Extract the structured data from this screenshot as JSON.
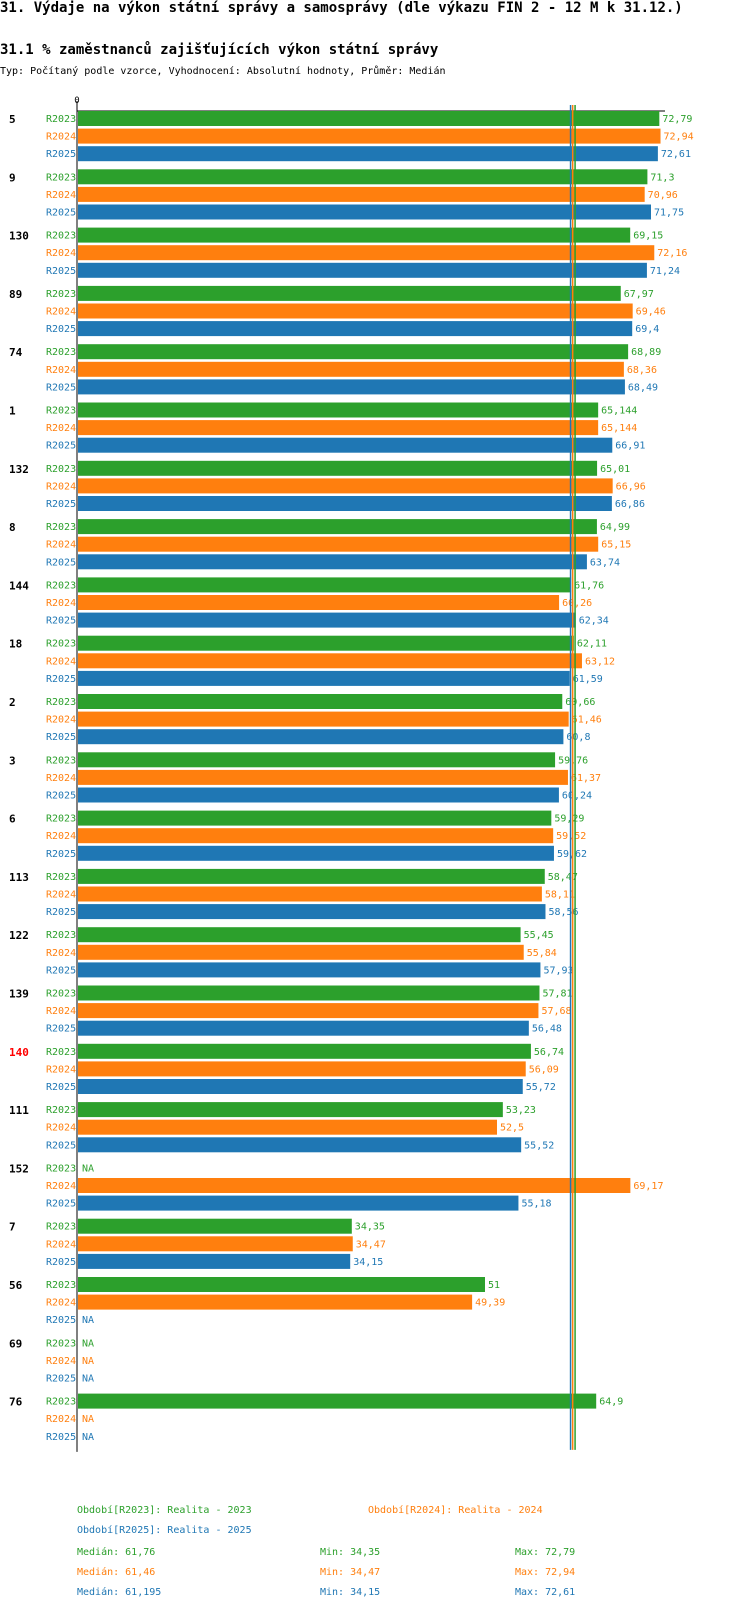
{
  "page": {
    "title": "31. Výdaje na výkon státní správy a samosprávy (dle výkazu FIN 2 - 12 M k 31.12.)",
    "subtitle": "31.1 % zaměstnanců zajišťujících výkon státní správy",
    "meta": "Typ: Počítaný podle vzorce, Vyhodnocení: Absolutní hodnoty, Průměr: Medián"
  },
  "colors": {
    "R2023": "#2ca02c",
    "R2024": "#ff7f0e",
    "R2025": "#1f77b4",
    "highlight": "#ff0000"
  },
  "chart_data": {
    "type": "bar",
    "orientation": "horizontal",
    "axis_zero_label": "0",
    "xlim": [
      0,
      73.5
    ],
    "series_names": [
      "R2023",
      "R2024",
      "R2025"
    ],
    "groups": [
      {
        "id": "5",
        "highlight": false,
        "values": [
          72.79,
          72.94,
          72.61
        ],
        "labels": [
          "72,79",
          "72,94",
          "72,61"
        ]
      },
      {
        "id": "9",
        "highlight": false,
        "values": [
          71.3,
          70.96,
          71.75
        ],
        "labels": [
          "71,3",
          "70,96",
          "71,75"
        ]
      },
      {
        "id": "130",
        "highlight": false,
        "values": [
          69.15,
          72.16,
          71.24
        ],
        "labels": [
          "69,15",
          "72,16",
          "71,24"
        ]
      },
      {
        "id": "89",
        "highlight": false,
        "values": [
          67.97,
          69.46,
          69.4
        ],
        "labels": [
          "67,97",
          "69,46",
          "69,4"
        ]
      },
      {
        "id": "74",
        "highlight": false,
        "values": [
          68.89,
          68.36,
          68.49
        ],
        "labels": [
          "68,89",
          "68,36",
          "68,49"
        ]
      },
      {
        "id": "1",
        "highlight": false,
        "values": [
          65.144,
          65.144,
          66.91
        ],
        "labels": [
          "65,144",
          "65,144",
          "66,91"
        ]
      },
      {
        "id": "132",
        "highlight": false,
        "values": [
          65.01,
          66.96,
          66.86
        ],
        "labels": [
          "65,01",
          "66,96",
          "66,86"
        ]
      },
      {
        "id": "8",
        "highlight": false,
        "values": [
          64.99,
          65.15,
          63.74
        ],
        "labels": [
          "64,99",
          "65,15",
          "63,74"
        ]
      },
      {
        "id": "144",
        "highlight": false,
        "values": [
          61.76,
          60.26,
          62.34
        ],
        "labels": [
          "61,76",
          "60,26",
          "62,34"
        ]
      },
      {
        "id": "18",
        "highlight": false,
        "values": [
          62.11,
          63.12,
          61.59
        ],
        "labels": [
          "62,11",
          "63,12",
          "61,59"
        ]
      },
      {
        "id": "2",
        "highlight": false,
        "values": [
          60.66,
          61.46,
          60.8
        ],
        "labels": [
          "60,66",
          "61,46",
          "60,8"
        ]
      },
      {
        "id": "3",
        "highlight": false,
        "values": [
          59.76,
          61.37,
          60.24
        ],
        "labels": [
          "59,76",
          "61,37",
          "60,24"
        ]
      },
      {
        "id": "6",
        "highlight": false,
        "values": [
          59.29,
          59.52,
          59.62
        ],
        "labels": [
          "59,29",
          "59,52",
          "59,62"
        ]
      },
      {
        "id": "113",
        "highlight": false,
        "values": [
          58.47,
          58.11,
          58.56
        ],
        "labels": [
          "58,47",
          "58,11",
          "58,56"
        ]
      },
      {
        "id": "122",
        "highlight": false,
        "values": [
          55.45,
          55.84,
          57.93
        ],
        "labels": [
          "55,45",
          "55,84",
          "57,93"
        ]
      },
      {
        "id": "139",
        "highlight": false,
        "values": [
          57.81,
          57.68,
          56.48
        ],
        "labels": [
          "57,81",
          "57,68",
          "56,48"
        ]
      },
      {
        "id": "140",
        "highlight": true,
        "values": [
          56.74,
          56.09,
          55.72
        ],
        "labels": [
          "56,74",
          "56,09",
          "55,72"
        ]
      },
      {
        "id": "111",
        "highlight": false,
        "values": [
          53.23,
          52.5,
          55.52
        ],
        "labels": [
          "53,23",
          "52,5",
          "55,52"
        ]
      },
      {
        "id": "152",
        "highlight": false,
        "values": [
          null,
          69.17,
          55.18
        ],
        "labels": [
          "NA",
          "69,17",
          "55,18"
        ]
      },
      {
        "id": "7",
        "highlight": false,
        "values": [
          34.35,
          34.47,
          34.15
        ],
        "labels": [
          "34,35",
          "34,47",
          "34,15"
        ]
      },
      {
        "id": "56",
        "highlight": false,
        "values": [
          51,
          49.39,
          null
        ],
        "labels": [
          "51",
          "49,39",
          "NA"
        ]
      },
      {
        "id": "69",
        "highlight": false,
        "values": [
          null,
          null,
          null
        ],
        "labels": [
          "NA",
          "NA",
          "NA"
        ]
      },
      {
        "id": "76",
        "highlight": false,
        "values": [
          64.9,
          null,
          null
        ],
        "labels": [
          "64,9",
          "NA",
          "NA"
        ]
      }
    ],
    "medians": [
      61.76,
      61.46,
      61.195
    ]
  },
  "legend": {
    "r2023": "Období[R2023]: Realita - 2023",
    "r2024": "Období[R2024]: Realita - 2024",
    "r2025": "Období[R2025]: Realita - 2025"
  },
  "stats": [
    {
      "median": "Medián: 61,76",
      "min": "Min: 34,35",
      "max": "Max: 72,79"
    },
    {
      "median": "Medián: 61,46",
      "min": "Min: 34,47",
      "max": "Max: 72,94"
    },
    {
      "median": "Medián: 61,195",
      "min": "Min: 34,15",
      "max": "Max: 72,61"
    }
  ]
}
